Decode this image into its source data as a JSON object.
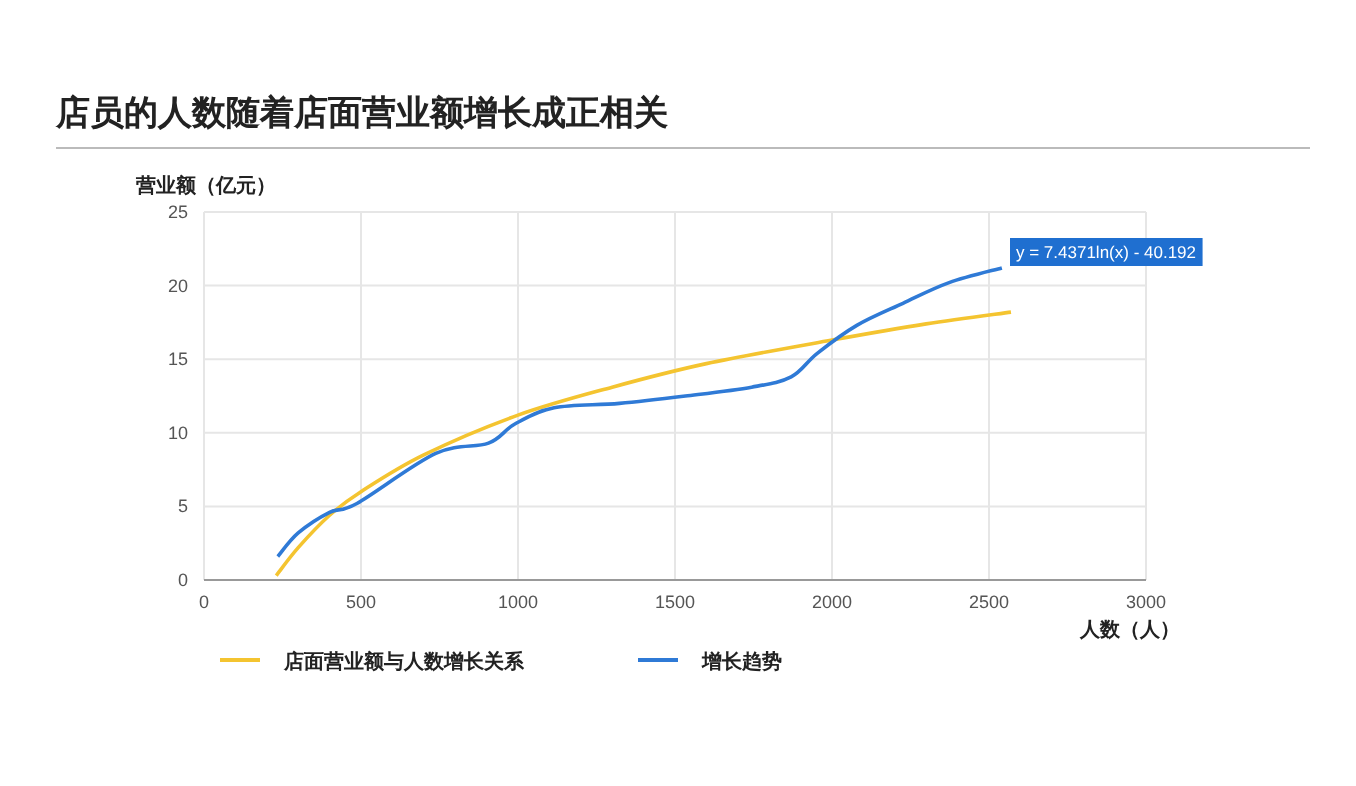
{
  "chart_data": {
    "type": "line",
    "title": "店员的人数随着店面营业额增长成正相关",
    "xlabel": "人数（人）",
    "ylabel": "营业额（亿元）",
    "xlim": [
      0,
      3000
    ],
    "xticks": [
      0,
      500,
      1000,
      1500,
      2000,
      2500,
      3000
    ],
    "ylim": [
      0,
      25
    ],
    "yticks": [
      0,
      5,
      10,
      15,
      20,
      25
    ],
    "grid": true,
    "legend": "bottom",
    "marker": "none",
    "line_style": "solid",
    "annotations": [
      "y = 7.4371ln(x) - 40.192"
    ],
    "series": [
      {
        "name": "店面营业额与人数增长关系",
        "color": "#f4c430",
        "x": [
          230,
          300,
          400,
          500,
          700,
          1000,
          1300,
          1600,
          2000,
          2300,
          2570
        ],
        "values": [
          0.3,
          2.2,
          4.4,
          6.0,
          8.5,
          11.2,
          13.1,
          14.7,
          16.3,
          17.4,
          18.2
        ]
      },
      {
        "name": "增长趋势",
        "color": "#2f7ad6",
        "x": [
          235,
          300,
          400,
          487,
          738,
          906,
          990,
          1115,
          1323,
          1533,
          1744,
          1870,
          1953,
          2079,
          2226,
          2373,
          2541
        ],
        "values": [
          1.6,
          3.2,
          4.6,
          5.2,
          8.6,
          9.3,
          10.6,
          11.7,
          12.0,
          12.5,
          13.1,
          13.8,
          15.4,
          17.3,
          18.8,
          20.2,
          21.2
        ]
      }
    ]
  }
}
